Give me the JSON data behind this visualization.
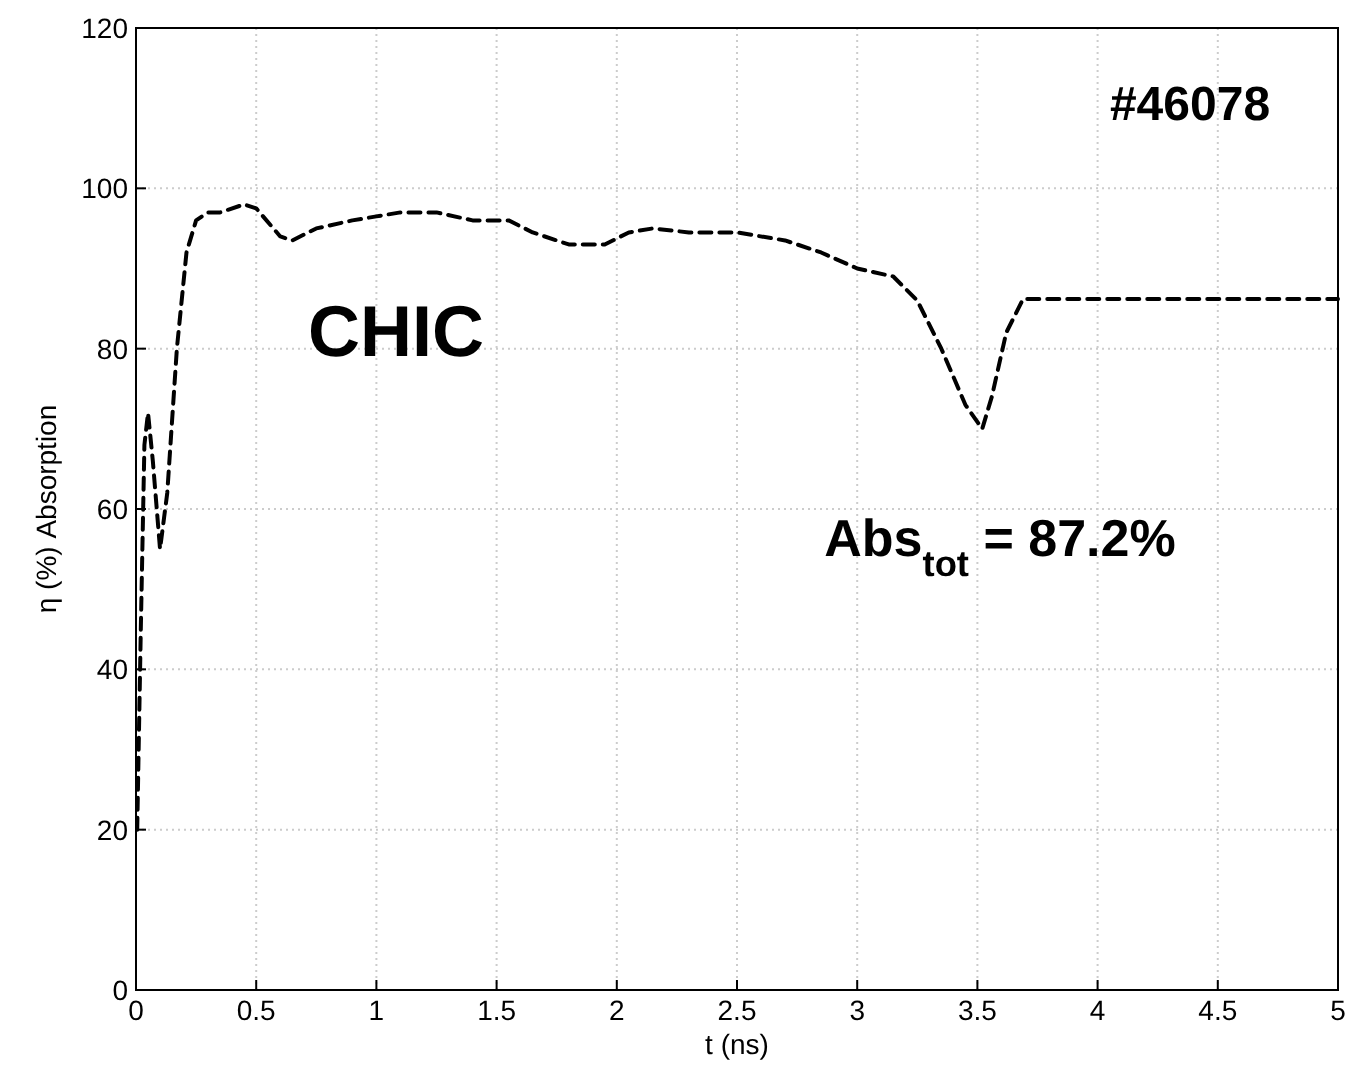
{
  "chart_data": {
    "type": "line",
    "xlabel": "t (ns)",
    "ylabel": "η (%) Absorption",
    "xlim": [
      0,
      5
    ],
    "ylim": [
      0,
      120
    ],
    "xticks": [
      0,
      0.5,
      1,
      1.5,
      2,
      2.5,
      3,
      3.5,
      4,
      4.5,
      5
    ],
    "yticks": [
      0,
      20,
      40,
      60,
      80,
      100,
      120
    ],
    "grid": true,
    "line_style": "dashed",
    "series": [
      {
        "color": "#000000",
        "x": [
          0.005,
          0.02,
          0.035,
          0.05,
          0.07,
          0.1,
          0.13,
          0.17,
          0.21,
          0.25,
          0.3,
          0.35,
          0.45,
          0.5,
          0.6,
          0.65,
          0.75,
          0.9,
          1.0,
          1.1,
          1.25,
          1.4,
          1.55,
          1.65,
          1.8,
          1.95,
          2.05,
          2.15,
          2.3,
          2.5,
          2.7,
          2.85,
          3.0,
          3.15,
          3.25,
          3.35,
          3.45,
          3.52,
          3.56,
          3.62,
          3.69,
          3.75,
          5
        ],
        "values": [
          20,
          45,
          68,
          72,
          66,
          55,
          62,
          80,
          92,
          96,
          97,
          97,
          98,
          97.5,
          94,
          93.5,
          95,
          96,
          96.5,
          97,
          97,
          96,
          96,
          94.5,
          93,
          93,
          94.5,
          95,
          94.5,
          94.5,
          93.5,
          92,
          90,
          89,
          86,
          80,
          73,
          70,
          74,
          82,
          86.2,
          86.2,
          86.2
        ]
      }
    ],
    "annotations": [
      "#46078",
      "CHIC",
      "Abs$_{tot}$ = 87.2%"
    ]
  }
}
